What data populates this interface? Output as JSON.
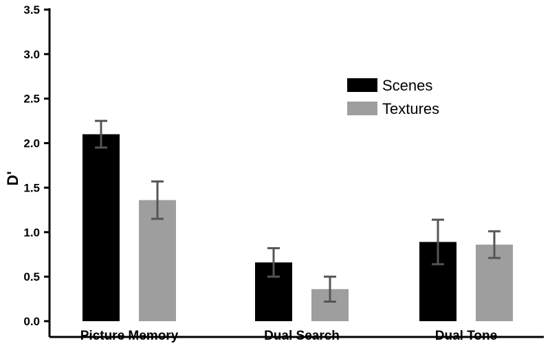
{
  "chart_data": {
    "type": "bar",
    "title": "",
    "xlabel": "",
    "ylabel": "D'",
    "ylim": [
      0,
      3.5
    ],
    "yticks": [
      "0.0",
      "0.5",
      "1.0",
      "1.5",
      "2.0",
      "2.5",
      "3.0",
      "3.5"
    ],
    "categories": [
      "Picture Memory",
      "Dual Search",
      "Dual Tone"
    ],
    "series": [
      {
        "name": "Scenes",
        "color": "#000000",
        "values": [
          2.1,
          0.66,
          0.89
        ],
        "error": [
          0.15,
          0.16,
          0.25
        ]
      },
      {
        "name": "Textures",
        "color": "#9e9e9e",
        "values": [
          1.36,
          0.36,
          0.86
        ],
        "error": [
          0.21,
          0.14,
          0.15
        ]
      }
    ],
    "error_bar_color": "#555555",
    "grid": false,
    "legend_position": "top-right"
  }
}
